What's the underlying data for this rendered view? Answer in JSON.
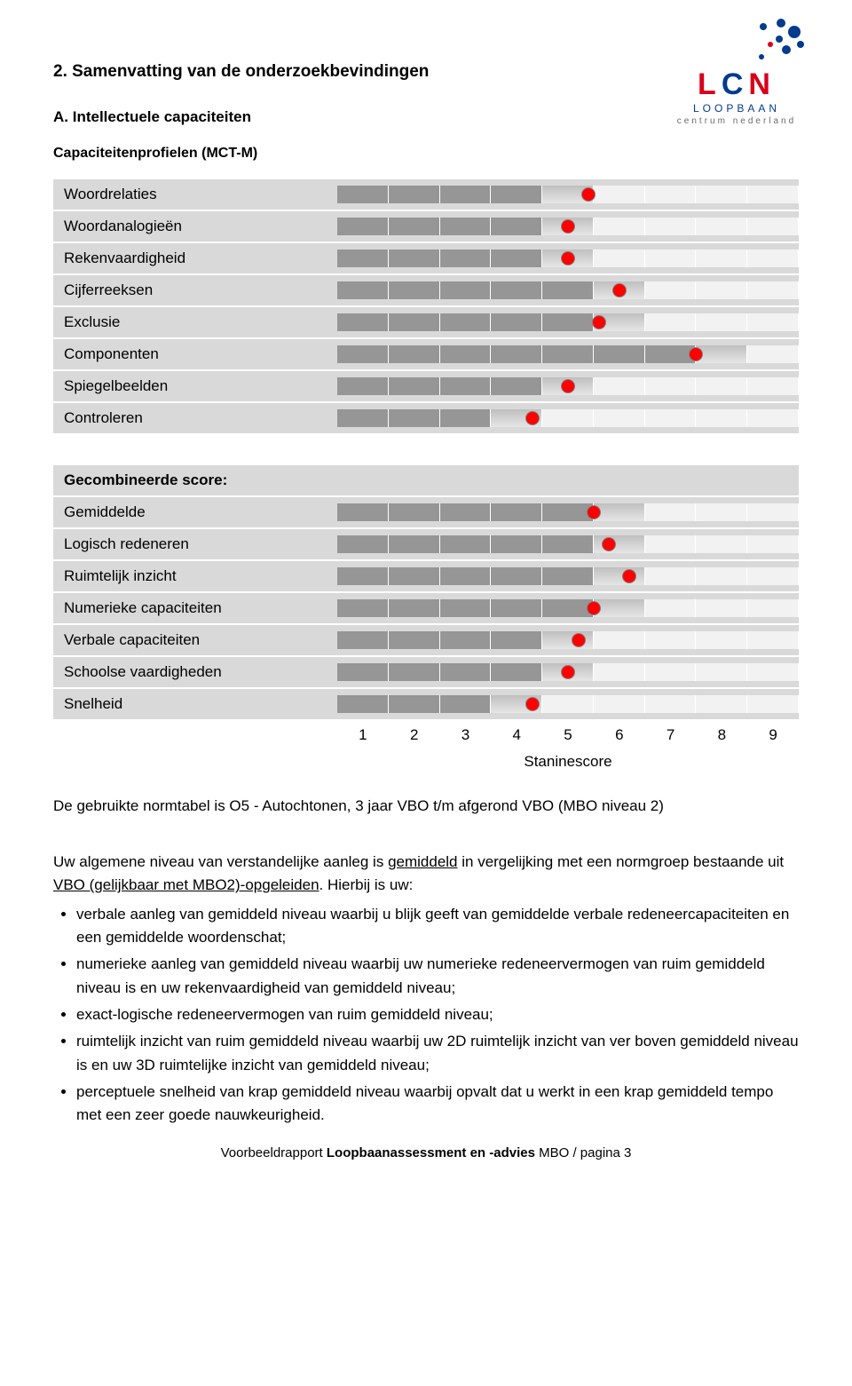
{
  "logo": {
    "letters": "LCN",
    "sub1": "LOOPBAAN",
    "sub2": "centrum nederland",
    "dot_color_a": "#003b8e",
    "dot_color_b": "#d8001b"
  },
  "headings": {
    "section": "2. Samenvatting van de onderzoekbevindingen",
    "sub": "A. Intellectuele capaciteiten",
    "profiel": "Capaciteitenprofielen (MCT-M)"
  },
  "chart": {
    "stanine_cells": 9,
    "colors": {
      "row_bg": "#d9d9d9",
      "filled": "#969696",
      "grad_top": "#bfbfbf",
      "grad_bottom": "#e6e6e6",
      "empty": "#f2f2f2",
      "marker": "#ff0000",
      "marker_border": "#808080"
    },
    "section2_header": "Gecombineerde score:",
    "rows1": [
      {
        "label": "Woordrelaties",
        "score": 5.4
      },
      {
        "label": "Woordanalogieën",
        "score": 5.0
      },
      {
        "label": "Rekenvaardigheid",
        "score": 5.0
      },
      {
        "label": "Cijferreeksen",
        "score": 6.0
      },
      {
        "label": "Exclusie",
        "score": 5.6
      },
      {
        "label": "Componenten",
        "score": 7.5
      },
      {
        "label": "Spiegelbeelden",
        "score": 5.0
      },
      {
        "label": "Controleren",
        "score": 4.3
      }
    ],
    "rows2": [
      {
        "label": "Gemiddelde",
        "score": 5.5
      },
      {
        "label": "Logisch redeneren",
        "score": 5.8
      },
      {
        "label": "Ruimtelijk inzicht",
        "score": 6.2
      },
      {
        "label": "Numerieke capaciteiten",
        "score": 5.5
      },
      {
        "label": "Verbale capaciteiten",
        "score": 5.2
      },
      {
        "label": "Schoolse vaardigheden",
        "score": 5.0
      },
      {
        "label": "Snelheid",
        "score": 4.3
      }
    ],
    "axis_label": "Staninescore",
    "axis_ticks": [
      "1",
      "2",
      "3",
      "4",
      "5",
      "6",
      "7",
      "8",
      "9"
    ]
  },
  "norm_note": "De gebruikte normtabel is O5 - Autochtonen, 3 jaar VBO t/m afgerond VBO (MBO niveau 2)",
  "body": {
    "intro_pre": "Uw algemene niveau van verstandelijke aanleg is ",
    "intro_u1": "gemiddeld",
    "intro_mid": " in vergelijking met een normgroep bestaande uit ",
    "intro_u2": "VBO (gelijkbaar met MBO2)-opgeleiden",
    "intro_post": ". Hierbij is uw:",
    "bullets": [
      "verbale aanleg van gemiddeld niveau waarbij u blijk geeft van gemiddelde verbale redeneercapaciteiten en een gemiddelde woordenschat;",
      "numerieke aanleg van gemiddeld niveau waarbij uw numerieke redeneervermogen van ruim gemiddeld niveau is en uw rekenvaardigheid van gemiddeld niveau;",
      "exact-logische redeneervermogen van ruim gemiddeld niveau;",
      "ruimtelijk inzicht van ruim gemiddeld niveau waarbij uw 2D ruimtelijk inzicht van ver boven gemiddeld niveau is en uw 3D ruimtelijke inzicht van gemiddeld niveau;",
      "perceptuele snelheid van krap gemiddeld niveau waarbij opvalt dat u werkt in een krap gemiddeld tempo met een zeer goede nauwkeurigheid."
    ]
  },
  "footer": {
    "pre": "Voorbeeldrapport ",
    "bold": "Loopbaanassessment en -advies",
    "post": " MBO / pagina 3"
  }
}
